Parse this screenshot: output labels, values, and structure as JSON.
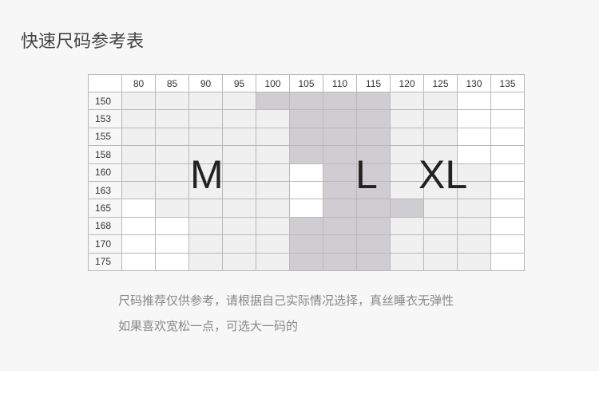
{
  "title": "快速尺码参考表",
  "table": {
    "columns": [
      "80",
      "85",
      "90",
      "95",
      "100",
      "105",
      "110",
      "115",
      "120",
      "125",
      "130",
      "135"
    ],
    "rows": [
      {
        "height": "150",
        "sizes": [
          1,
          1,
          1,
          1,
          2,
          2,
          2,
          2,
          1,
          1,
          0,
          0
        ]
      },
      {
        "height": "153",
        "sizes": [
          1,
          1,
          1,
          1,
          1,
          2,
          2,
          2,
          1,
          1,
          0,
          0
        ]
      },
      {
        "height": "155",
        "sizes": [
          1,
          1,
          1,
          1,
          1,
          2,
          2,
          2,
          1,
          1,
          0,
          0
        ]
      },
      {
        "height": "158",
        "sizes": [
          1,
          1,
          1,
          1,
          1,
          2,
          2,
          2,
          1,
          1,
          0,
          0
        ]
      },
      {
        "height": "160",
        "sizes": [
          1,
          1,
          1,
          1,
          1,
          0,
          2,
          2,
          1,
          1,
          1,
          0
        ]
      },
      {
        "height": "163",
        "sizes": [
          1,
          1,
          1,
          1,
          1,
          0,
          2,
          2,
          1,
          1,
          1,
          0
        ]
      },
      {
        "height": "165",
        "sizes": [
          0,
          1,
          1,
          1,
          1,
          0,
          2,
          2,
          2,
          1,
          1,
          0
        ]
      },
      {
        "height": "168",
        "sizes": [
          0,
          0,
          1,
          1,
          1,
          2,
          2,
          2,
          1,
          1,
          1,
          0
        ]
      },
      {
        "height": "170",
        "sizes": [
          0,
          0,
          1,
          1,
          1,
          2,
          2,
          2,
          1,
          1,
          1,
          0
        ]
      },
      {
        "height": "175",
        "sizes": [
          0,
          0,
          1,
          1,
          1,
          2,
          2,
          2,
          1,
          1,
          1,
          0
        ]
      }
    ],
    "shade_colors": [
      "#ffffff",
      "#f0f0f0",
      "#cfcdd2"
    ],
    "labels": {
      "m": "M",
      "l": "L",
      "xl": "XL"
    }
  },
  "notes": [
    "尺码推荐仅供参考，请根据自己实际情况选择，真丝睡衣无弹性",
    "如果喜欢宽松一点，可选大一码的"
  ]
}
